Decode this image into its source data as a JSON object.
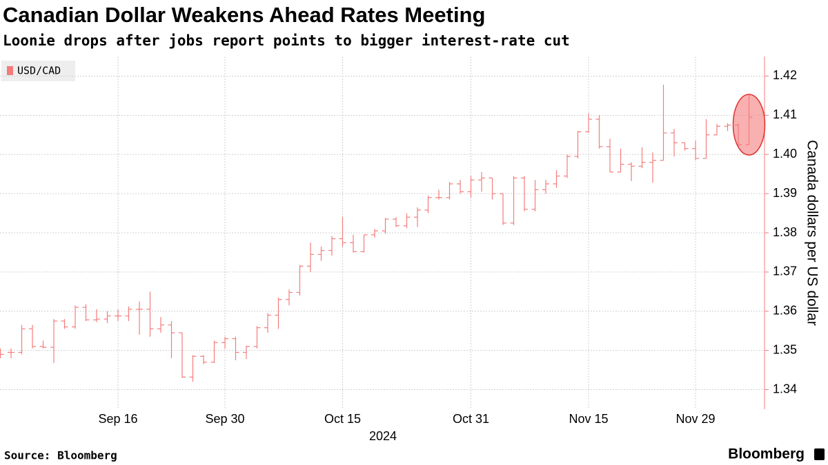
{
  "chart_data": {
    "type": "ohlc",
    "title": "Canadian Dollar Weakens Ahead Rates Meeting",
    "subtitle": "Loonie drops after jobs report points to bigger interest-rate cut",
    "source": "Source: Bloomberg",
    "logo": "Bloomberg",
    "xlabel": "2024",
    "ylabel": "Canada dollars per US dollar",
    "categories": [
      null,
      null,
      null,
      null,
      null,
      null,
      null,
      null,
      null,
      null,
      null,
      "Sep 16",
      null,
      null,
      null,
      null,
      null,
      null,
      null,
      null,
      null,
      "Sep 30",
      null,
      null,
      null,
      null,
      null,
      null,
      null,
      null,
      null,
      null,
      "Oct 15",
      null,
      null,
      null,
      null,
      null,
      null,
      null,
      null,
      null,
      null,
      null,
      "Oct 31",
      null,
      null,
      null,
      null,
      null,
      null,
      null,
      null,
      null,
      null,
      "Nov 15",
      null,
      null,
      null,
      null,
      null,
      null,
      null,
      null,
      null,
      "Nov 29",
      null,
      null,
      null,
      null,
      null
    ],
    "series": [
      {
        "name": "USD/CAD",
        "color": "#f47b7b",
        "open": [
          1.3495,
          1.3495,
          1.3495,
          1.3555,
          1.351,
          1.3508,
          1.3575,
          1.356,
          1.361,
          1.3578,
          1.358,
          1.3588,
          1.3588,
          1.3605,
          1.3605,
          1.3555,
          1.3565,
          1.3545,
          1.3432,
          1.3485,
          1.347,
          1.352,
          1.353,
          1.3495,
          1.351,
          1.3558,
          1.359,
          1.363,
          1.3648,
          1.3715,
          1.3745,
          1.3755,
          1.3785,
          1.3775,
          1.3752,
          1.3795,
          1.3805,
          1.3835,
          1.3818,
          1.384,
          1.3858,
          1.389,
          1.389,
          1.3925,
          1.3905,
          1.3935,
          1.394,
          1.39,
          1.3825,
          1.394,
          1.386,
          1.391,
          1.3925,
          1.3945,
          1.3995,
          1.4058,
          1.409,
          1.402,
          1.3955,
          1.3975,
          1.397,
          1.398,
          1.3985,
          1.4055,
          1.403,
          1.4015,
          1.399,
          1.405,
          1.4072,
          1.4075,
          1.4025
        ],
        "high": [
          1.3505,
          1.3505,
          1.3565,
          1.3565,
          1.3525,
          1.358,
          1.358,
          1.3615,
          1.3618,
          1.3605,
          1.36,
          1.3605,
          1.3612,
          1.3625,
          1.365,
          1.3585,
          1.3575,
          1.3545,
          1.3488,
          1.3488,
          1.3525,
          1.3535,
          1.3535,
          1.3512,
          1.3562,
          1.3595,
          1.3635,
          1.3655,
          1.3718,
          1.3775,
          1.3765,
          1.3792,
          1.384,
          1.3795,
          1.3795,
          1.381,
          1.3838,
          1.384,
          1.385,
          1.3865,
          1.3895,
          1.391,
          1.393,
          1.3935,
          1.3945,
          1.3955,
          1.394,
          1.39,
          1.3945,
          1.3945,
          1.3935,
          1.3935,
          1.396,
          1.4,
          1.406,
          1.4105,
          1.41,
          1.404,
          1.4015,
          1.398,
          1.4018,
          1.4005,
          1.4178,
          1.4065,
          1.403,
          1.4035,
          1.409,
          1.4078,
          1.408,
          1.408,
          1.4155
        ],
        "low": [
          1.348,
          1.348,
          1.349,
          1.3505,
          1.3505,
          1.3468,
          1.3555,
          1.3555,
          1.3575,
          1.3572,
          1.357,
          1.3575,
          1.3575,
          1.354,
          1.3535,
          1.3545,
          1.348,
          1.343,
          1.342,
          1.3465,
          1.3468,
          1.3505,
          1.3475,
          1.3478,
          1.3505,
          1.3545,
          1.3555,
          1.3615,
          1.364,
          1.37,
          1.3728,
          1.3742,
          1.3765,
          1.375,
          1.375,
          1.3788,
          1.3798,
          1.3815,
          1.3812,
          1.3815,
          1.385,
          1.3885,
          1.3885,
          1.39,
          1.389,
          1.3905,
          1.3885,
          1.382,
          1.382,
          1.3855,
          1.3855,
          1.39,
          1.3915,
          1.394,
          1.399,
          1.4055,
          1.4015,
          1.3955,
          1.3955,
          1.3932,
          1.3965,
          1.3928,
          1.3985,
          1.3995,
          1.401,
          1.3985,
          1.399,
          1.405,
          1.406,
          1.402,
          1.4025
        ],
        "close": [
          1.349,
          1.3495,
          1.3555,
          1.351,
          1.3508,
          1.3575,
          1.356,
          1.361,
          1.3578,
          1.358,
          1.3588,
          1.3588,
          1.3605,
          1.3605,
          1.3555,
          1.3565,
          1.3545,
          1.3432,
          1.3485,
          1.347,
          1.352,
          1.353,
          1.3495,
          1.351,
          1.3558,
          1.359,
          1.363,
          1.3648,
          1.3715,
          1.3745,
          1.3755,
          1.3785,
          1.3775,
          1.3752,
          1.3795,
          1.3805,
          1.3835,
          1.3818,
          1.384,
          1.3858,
          1.389,
          1.389,
          1.3925,
          1.3905,
          1.3935,
          1.394,
          1.39,
          1.3825,
          1.394,
          1.386,
          1.391,
          1.3925,
          1.3945,
          1.3995,
          1.4058,
          1.409,
          1.402,
          1.3955,
          1.3975,
          1.397,
          1.398,
          1.3985,
          1.4055,
          1.403,
          1.4015,
          1.399,
          1.405,
          1.4072,
          1.4075,
          1.4025,
          1.4095
        ]
      }
    ],
    "ylim": [
      1.335,
      1.425
    ],
    "yticks": [
      1.34,
      1.35,
      1.36,
      1.37,
      1.38,
      1.39,
      {
        "value": 1.4,
        "label": "1.40"
      },
      1.41,
      1.42
    ],
    "grid": true
  }
}
